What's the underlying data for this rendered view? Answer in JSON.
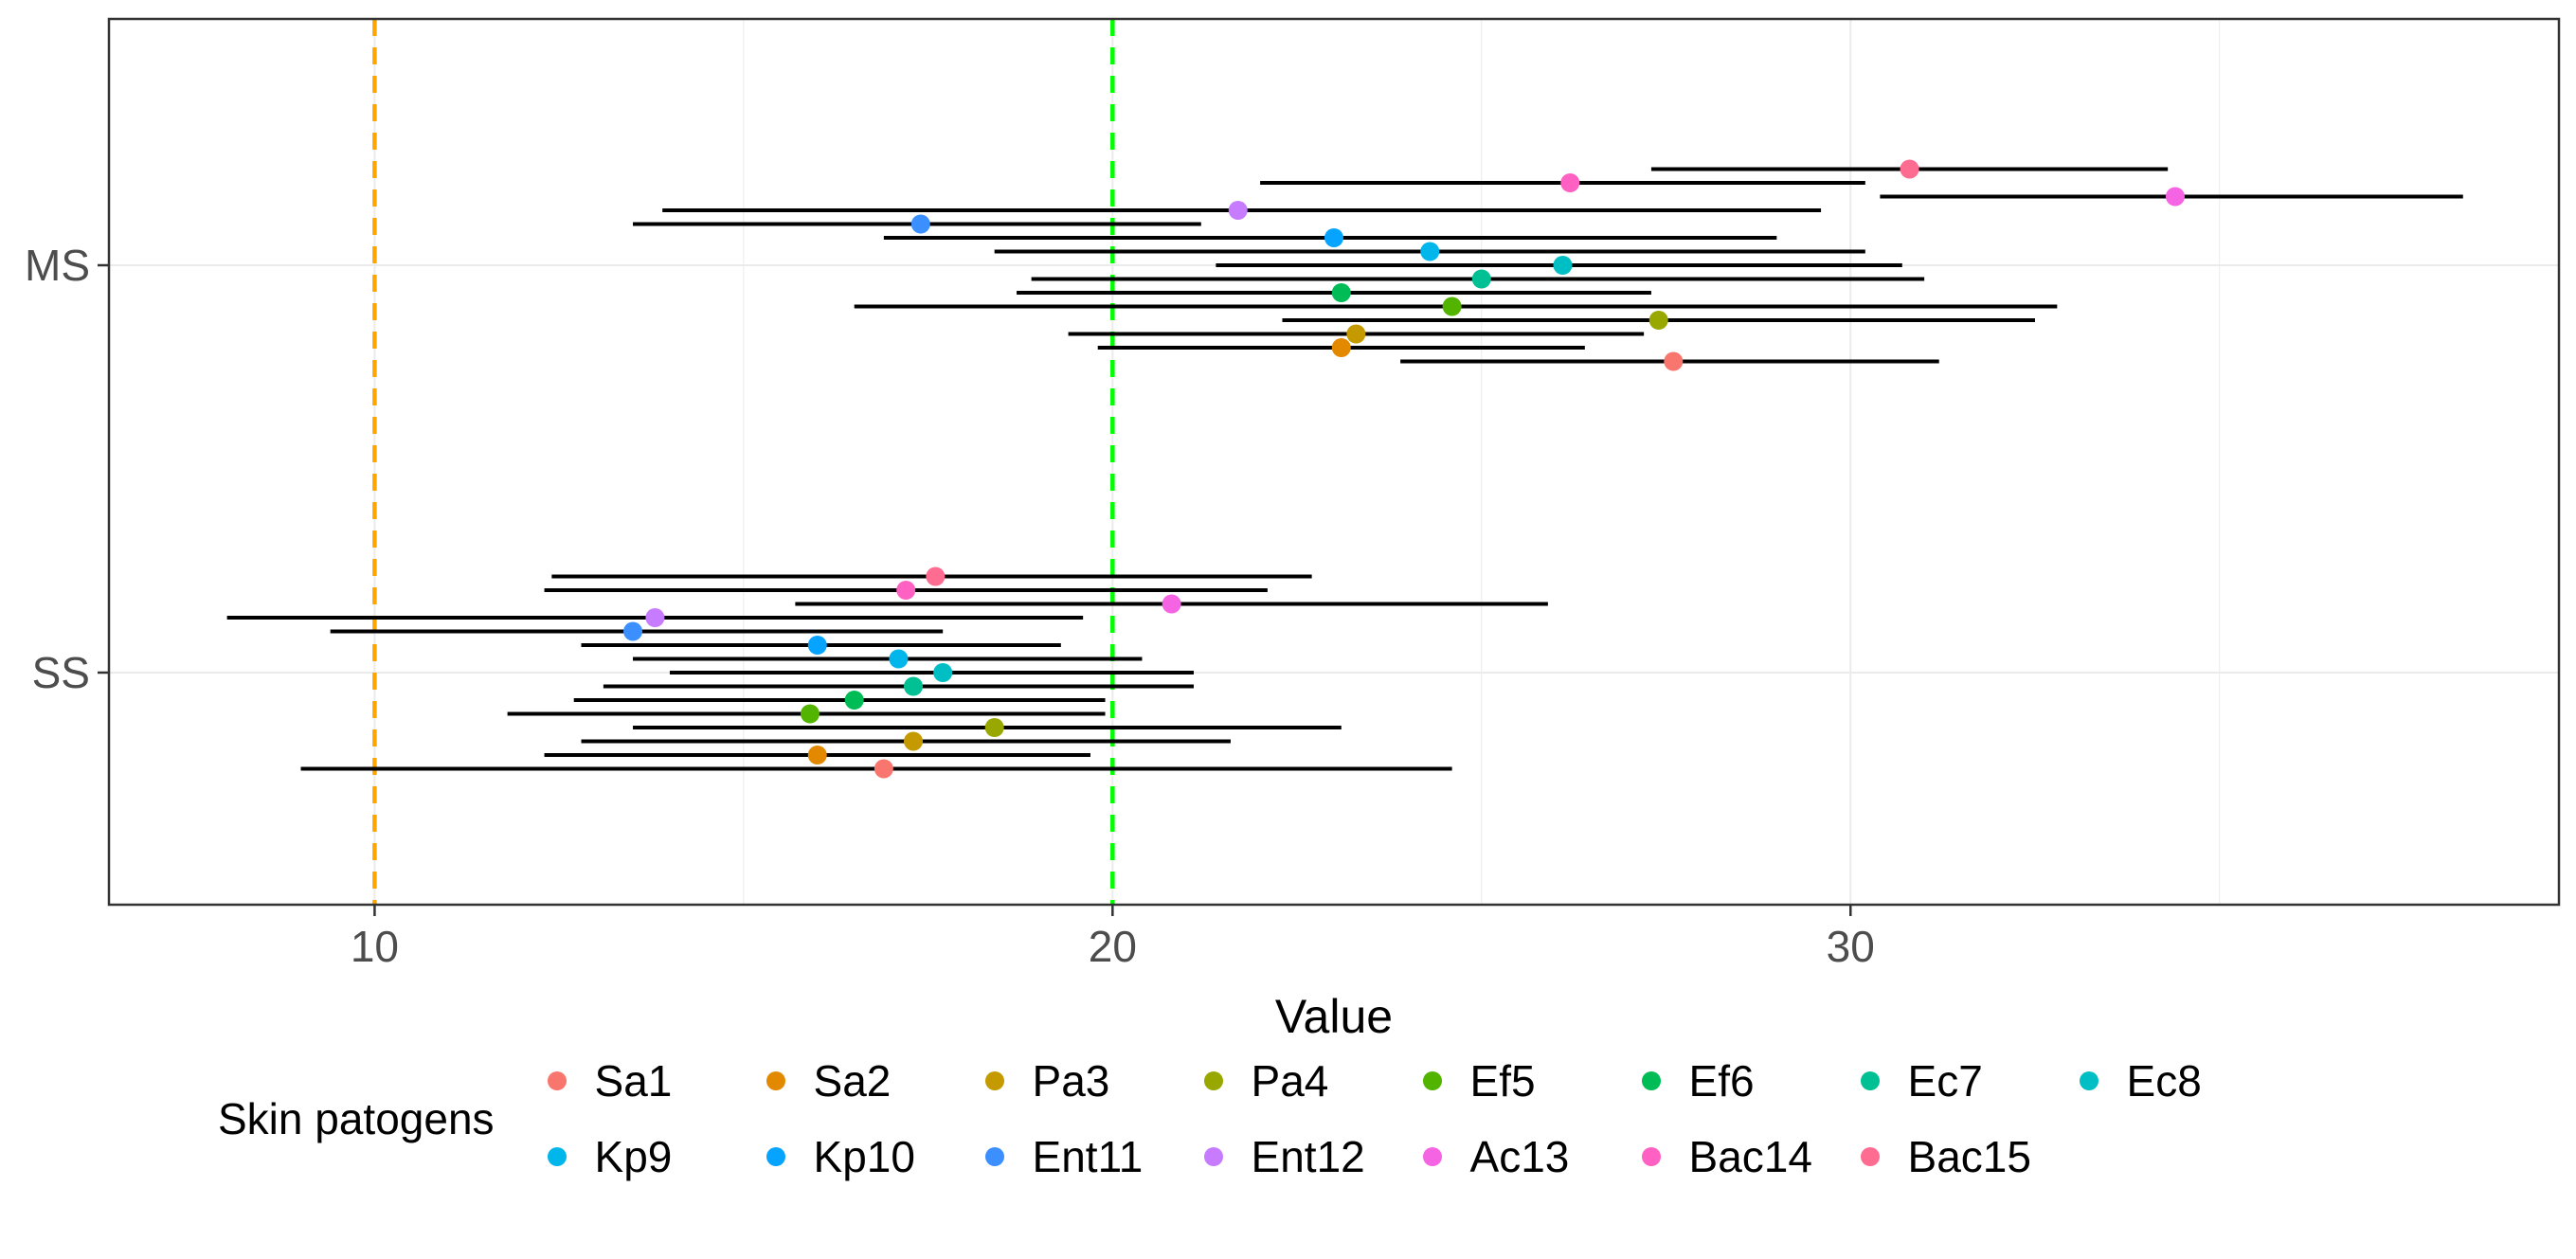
{
  "chart_data": {
    "type": "scatter",
    "subtype": "point-range",
    "title": "",
    "xlabel": "Value",
    "ylabel": "",
    "xlim": [
      6.4,
      39.6
    ],
    "x_ticks": [
      10,
      20,
      30
    ],
    "x_tick_labels": [
      "10",
      "20",
      "30"
    ],
    "categories": [
      "SS",
      "MS"
    ],
    "grid": true,
    "reference_lines": [
      {
        "x": 10,
        "color": "#FFA500",
        "style": "dashed"
      },
      {
        "x": 20,
        "color": "#00FF00",
        "style": "dashed"
      }
    ],
    "legend": {
      "title": "Skin patogens",
      "position": "bottom"
    },
    "series": [
      {
        "name": "Sa1",
        "color": "#F8766D",
        "points": [
          {
            "group": "MS",
            "value": 27.6,
            "low": 23.9,
            "high": 31.2
          },
          {
            "group": "SS",
            "value": 16.9,
            "low": 9.0,
            "high": 24.6
          }
        ]
      },
      {
        "name": "Sa2",
        "color": "#E38900",
        "points": [
          {
            "group": "MS",
            "value": 23.1,
            "low": 19.8,
            "high": 26.4
          },
          {
            "group": "SS",
            "value": 16.0,
            "low": 12.3,
            "high": 19.7
          }
        ]
      },
      {
        "name": "Pa3",
        "color": "#C49A00",
        "points": [
          {
            "group": "MS",
            "value": 23.3,
            "low": 19.4,
            "high": 27.2
          },
          {
            "group": "SS",
            "value": 17.3,
            "low": 12.8,
            "high": 21.6
          }
        ]
      },
      {
        "name": "Pa4",
        "color": "#99A800",
        "points": [
          {
            "group": "MS",
            "value": 27.4,
            "low": 22.3,
            "high": 32.5
          },
          {
            "group": "SS",
            "value": 18.4,
            "low": 13.5,
            "high": 23.1
          }
        ]
      },
      {
        "name": "Ef5",
        "color": "#53B400",
        "points": [
          {
            "group": "MS",
            "value": 24.6,
            "low": 16.5,
            "high": 32.8
          },
          {
            "group": "SS",
            "value": 15.9,
            "low": 11.8,
            "high": 19.9
          }
        ]
      },
      {
        "name": "Ef6",
        "color": "#00BC56",
        "points": [
          {
            "group": "MS",
            "value": 23.1,
            "low": 18.7,
            "high": 27.3
          },
          {
            "group": "SS",
            "value": 16.5,
            "low": 12.7,
            "high": 19.9
          }
        ]
      },
      {
        "name": "Ec7",
        "color": "#00C094",
        "points": [
          {
            "group": "MS",
            "value": 25.0,
            "low": 18.9,
            "high": 31.0
          },
          {
            "group": "SS",
            "value": 17.3,
            "low": 13.1,
            "high": 21.1
          }
        ]
      },
      {
        "name": "Ec8",
        "color": "#00BFC4",
        "points": [
          {
            "group": "MS",
            "value": 26.1,
            "low": 21.4,
            "high": 30.7
          },
          {
            "group": "SS",
            "value": 17.7,
            "low": 14.0,
            "high": 21.1
          }
        ]
      },
      {
        "name": "Kp9",
        "color": "#00B6EB",
        "points": [
          {
            "group": "MS",
            "value": 24.3,
            "low": 18.4,
            "high": 30.2
          },
          {
            "group": "SS",
            "value": 17.1,
            "low": 13.5,
            "high": 20.4
          }
        ]
      },
      {
        "name": "Kp10",
        "color": "#06A4FF",
        "points": [
          {
            "group": "MS",
            "value": 23.0,
            "low": 16.9,
            "high": 29.0
          },
          {
            "group": "SS",
            "value": 16.0,
            "low": 12.8,
            "high": 19.3
          }
        ]
      },
      {
        "name": "Ent11",
        "color": "#3B8FFF",
        "points": [
          {
            "group": "MS",
            "value": 17.4,
            "low": 13.5,
            "high": 21.2
          },
          {
            "group": "SS",
            "value": 13.5,
            "low": 9.4,
            "high": 17.7
          }
        ]
      },
      {
        "name": "Ent12",
        "color": "#C77CFF",
        "points": [
          {
            "group": "MS",
            "value": 21.7,
            "low": 13.9,
            "high": 29.6
          },
          {
            "group": "SS",
            "value": 13.8,
            "low": 8.0,
            "high": 19.6
          }
        ]
      },
      {
        "name": "Ac13",
        "color": "#F564E3",
        "points": [
          {
            "group": "MS",
            "value": 34.4,
            "low": 30.4,
            "high": 38.3
          },
          {
            "group": "SS",
            "value": 20.8,
            "low": 15.7,
            "high": 25.9
          }
        ]
      },
      {
        "name": "Bac14",
        "color": "#FF61C3",
        "points": [
          {
            "group": "MS",
            "value": 26.2,
            "low": 22.0,
            "high": 30.2
          },
          {
            "group": "SS",
            "value": 17.2,
            "low": 12.3,
            "high": 22.1
          }
        ]
      },
      {
        "name": "Bac15",
        "color": "#FF6C91",
        "points": [
          {
            "group": "MS",
            "value": 30.8,
            "low": 27.3,
            "high": 34.3
          },
          {
            "group": "SS",
            "value": 17.6,
            "low": 12.4,
            "high": 22.7
          }
        ]
      }
    ]
  }
}
